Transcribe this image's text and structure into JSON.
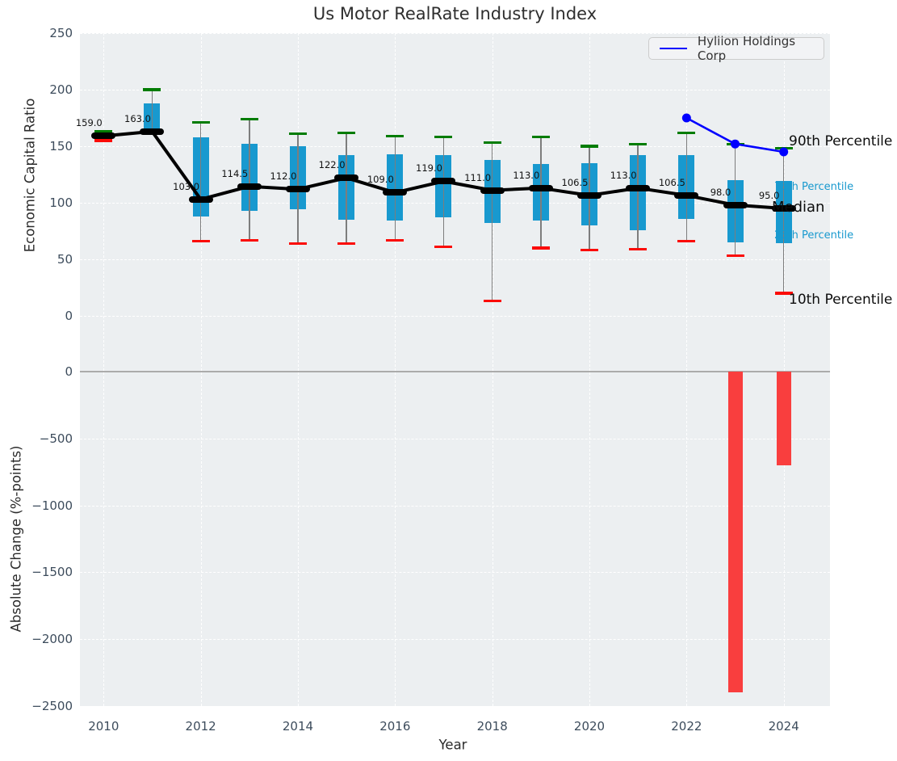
{
  "chart_data": [
    {
      "type": "boxplot+line",
      "title": "Us Motor RealRate Industry Index",
      "ylabel": "Economic Capital Ratio",
      "ylim": [
        0,
        250
      ],
      "yticks": [
        250,
        200,
        150,
        100,
        50,
        0
      ],
      "ytick_labels": [
        "250",
        "200",
        "150",
        "100",
        "50",
        "0"
      ],
      "x": [
        2010,
        2011,
        2012,
        2013,
        2014,
        2015,
        2016,
        2017,
        2018,
        2019,
        2020,
        2021,
        2022,
        2023,
        2024
      ],
      "xticks": [
        2010,
        2012,
        2014,
        2016,
        2018,
        2020,
        2022,
        2024
      ],
      "xtick_labels": [
        "2010",
        "2012",
        "2014",
        "2016",
        "2018",
        "2020",
        "2022",
        "2024"
      ],
      "grid": "on",
      "series": [
        {
          "name": "Median",
          "values": [
            159.0,
            163.0,
            103.0,
            114.5,
            112.0,
            122.0,
            109.0,
            119.0,
            111.0,
            113.0,
            106.5,
            113.0,
            106.5,
            98.0,
            95.0
          ]
        },
        {
          "name": "90th Percentile",
          "values": [
            163,
            200,
            171,
            174,
            161,
            162,
            159,
            158,
            153,
            158,
            150,
            152,
            162,
            152,
            148
          ]
        },
        {
          "name": "75th Percentile",
          "values": [
            161,
            188,
            158,
            152,
            150,
            142,
            143,
            142,
            138,
            134,
            135,
            142,
            142,
            120,
            119
          ]
        },
        {
          "name": "25th Percentile",
          "values": [
            157,
            165,
            88,
            93,
            94,
            85,
            84,
            87,
            82,
            84,
            80,
            76,
            86,
            65,
            64
          ]
        },
        {
          "name": "10th Percentile",
          "values": [
            155,
            161,
            66,
            67,
            64,
            64,
            67,
            61,
            13,
            60,
            58,
            59,
            66,
            53,
            20
          ]
        },
        {
          "name": "Hyliion Holdings Corp",
          "x": [
            2022,
            2023,
            2024
          ],
          "values": [
            175,
            152,
            145
          ]
        }
      ],
      "median_labels": [
        "159.0",
        "163.0",
        "103.0",
        "114.5",
        "112.0",
        "122.0",
        "109.0",
        "119.0",
        "111.0",
        "113.0",
        "106.5",
        "113.0",
        "106.5",
        "98.0",
        "95.0"
      ],
      "legend": {
        "label": "Hyliion Holdings Corp",
        "position": "upper right"
      },
      "right_labels": {
        "p90": "90th Percentile",
        "p75": "75th Percentile",
        "median": "Median",
        "p25": "25th Percentile",
        "p10": "10th Percentile"
      }
    },
    {
      "type": "bar",
      "ylabel": "Absolute Change (%-points)",
      "xlabel": "Year",
      "ylim": [
        -2500,
        0
      ],
      "yticks": [
        0,
        -500,
        -1000,
        -1500,
        -2000,
        -2500
      ],
      "ytick_labels": [
        "0",
        "−500",
        "−1000",
        "−1500",
        "−2000",
        "−2500"
      ],
      "x": [
        2023,
        2024
      ],
      "values": [
        -2400,
        -700
      ],
      "grid": "on"
    }
  ],
  "colors": {
    "panel_bg": "#eceff1",
    "box_fill": "#1899cf",
    "p90_cap": "#007c02",
    "p10_cap": "#fb0b06",
    "median": "#000000",
    "hyliion_line": "#0000ff",
    "bar_negative": "#f93e3e",
    "tick_text": "#3d4c5c",
    "annotation_cyan": "#1899ce"
  }
}
